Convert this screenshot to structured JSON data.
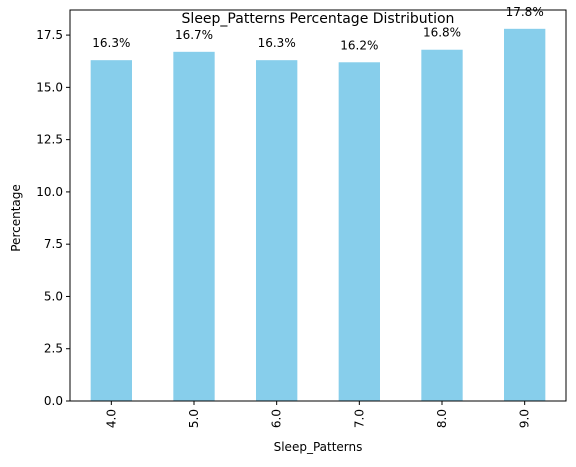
{
  "chart_data": {
    "type": "bar",
    "title": "Sleep_Patterns Percentage Distribution",
    "xlabel": "Sleep_Patterns",
    "ylabel": "Percentage",
    "categories": [
      "4.0",
      "5.0",
      "6.0",
      "7.0",
      "8.0",
      "9.0"
    ],
    "values": [
      16.3,
      16.7,
      16.3,
      16.2,
      16.8,
      17.8
    ],
    "data_labels": [
      "16.3%",
      "16.7%",
      "16.3%",
      "16.2%",
      "16.8%",
      "17.8%"
    ],
    "ylim": [
      0,
      18.7
    ],
    "yticks": [
      0.0,
      2.5,
      5.0,
      7.5,
      10.0,
      12.5,
      15.0,
      17.5
    ],
    "ytick_labels": [
      "0.0",
      "2.5",
      "5.0",
      "7.5",
      "10.0",
      "12.5",
      "15.0",
      "17.5"
    ],
    "bar_color": "#87ceeb",
    "grid": false,
    "legend": "none"
  }
}
